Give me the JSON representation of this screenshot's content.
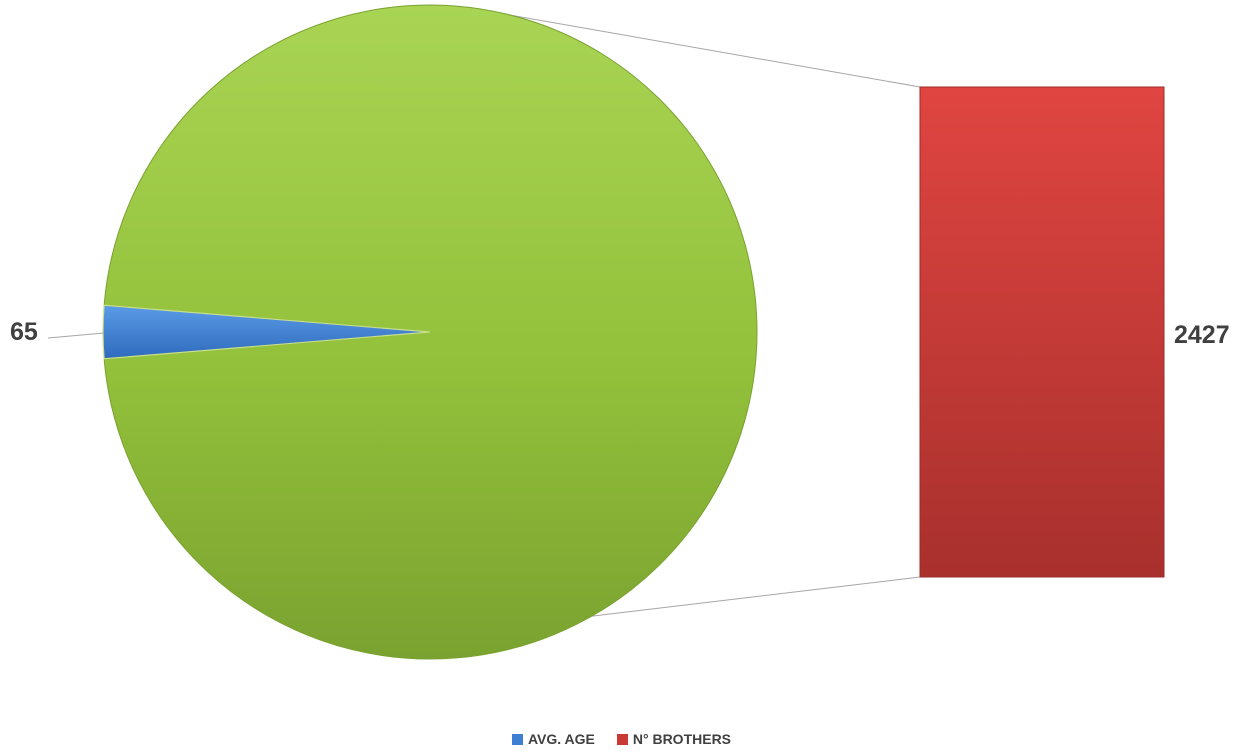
{
  "chart_data": {
    "type": "pie",
    "subtype": "bar-of-pie",
    "title": "",
    "categories": [
      "AVG. AGE",
      "N° BROTHERS"
    ],
    "values": [
      65,
      2427
    ],
    "data_labels": [
      "65",
      "2427"
    ],
    "colors": [
      "#3e7fd3",
      "#c93a37"
    ],
    "pie_remainder_color": "#93c13b",
    "legend": {
      "position": "bottom",
      "entries": [
        {
          "label": "AVG. AGE",
          "color": "#3e7fd3"
        },
        {
          "label": "N° BROTHERS",
          "color": "#c93a37"
        }
      ]
    }
  }
}
